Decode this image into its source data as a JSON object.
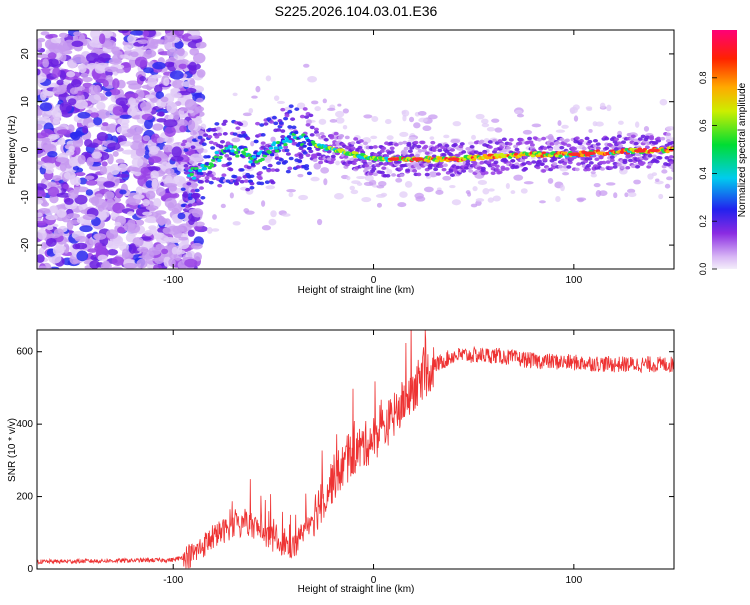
{
  "figure_title": "S225.2026.104.03.01.E36",
  "chart_data": [
    {
      "type": "heatmap",
      "xlabel": "Height of straight line (km)",
      "ylabel": "Frequency (Hz)",
      "xlim": [
        -168,
        150
      ],
      "ylim": [
        -25,
        25
      ],
      "x_ticks": [
        -100,
        0,
        100
      ],
      "y_ticks": [
        -20,
        -10,
        0,
        10,
        20
      ],
      "colorbar": {
        "label": "Normalized spectral amplitude",
        "range": [
          0,
          1
        ],
        "ticks": [
          0.0,
          0.2,
          0.4,
          0.6,
          0.8
        ],
        "tick_labels": [
          "0.0",
          "0.2",
          "0.4",
          "0.6",
          "0.8"
        ],
        "colormap": "rainbow (white, violet, blue, cyan, green, yellow, red, magenta)"
      },
      "ridge": {
        "description": "carrier frequency trace",
        "x": [
          -90,
          -80,
          -70,
          -60,
          -50,
          -40,
          -30,
          -20,
          -10,
          0,
          10,
          20,
          40,
          60,
          80,
          100,
          120,
          150
        ],
        "y": [
          -5,
          -2,
          0,
          -2,
          0,
          3,
          1,
          0,
          -1,
          -2,
          -2,
          -2,
          -2,
          -1.5,
          -1,
          -1,
          -0.5,
          0
        ]
      }
    },
    {
      "type": "line",
      "xlabel": "Height of straight line (km)",
      "ylabel": "SNR (10 * v/v)",
      "xlim": [
        -168,
        150
      ],
      "ylim": [
        0,
        660
      ],
      "x_ticks": [
        -100,
        0,
        100
      ],
      "y_ticks": [
        0,
        200,
        400,
        600
      ],
      "line_color": "#ee3333",
      "trend": {
        "x": [
          -168,
          -100,
          -90,
          -80,
          -70,
          -60,
          -50,
          -40,
          -30,
          -20,
          -10,
          0,
          10,
          20,
          30,
          40,
          60,
          80,
          100,
          120,
          150
        ],
        "y": [
          20,
          25,
          40,
          90,
          120,
          120,
          80,
          60,
          150,
          250,
          320,
          360,
          420,
          500,
          560,
          590,
          590,
          575,
          570,
          565,
          565
        ]
      }
    }
  ]
}
